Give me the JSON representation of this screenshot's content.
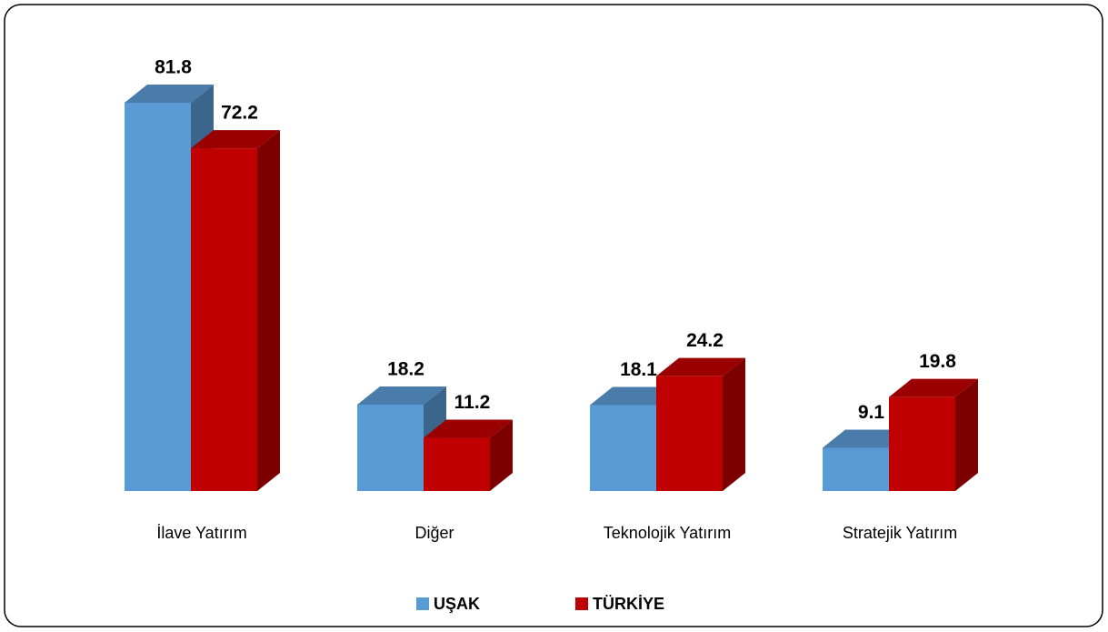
{
  "chart_data": {
    "type": "bar3d",
    "categories": [
      "İlave Yatırım",
      "Diğer",
      "Teknolojik Yatırım",
      "Stratejik Yatırım"
    ],
    "series": [
      {
        "name": "UŞAK",
        "color": "#5b9bd5",
        "values": [
          81.8,
          18.2,
          18.1,
          9.1
        ]
      },
      {
        "name": "TÜRKİYE",
        "color": "#c00000",
        "values": [
          72.2,
          11.2,
          24.2,
          19.8
        ]
      }
    ],
    "legend": "bottom"
  }
}
